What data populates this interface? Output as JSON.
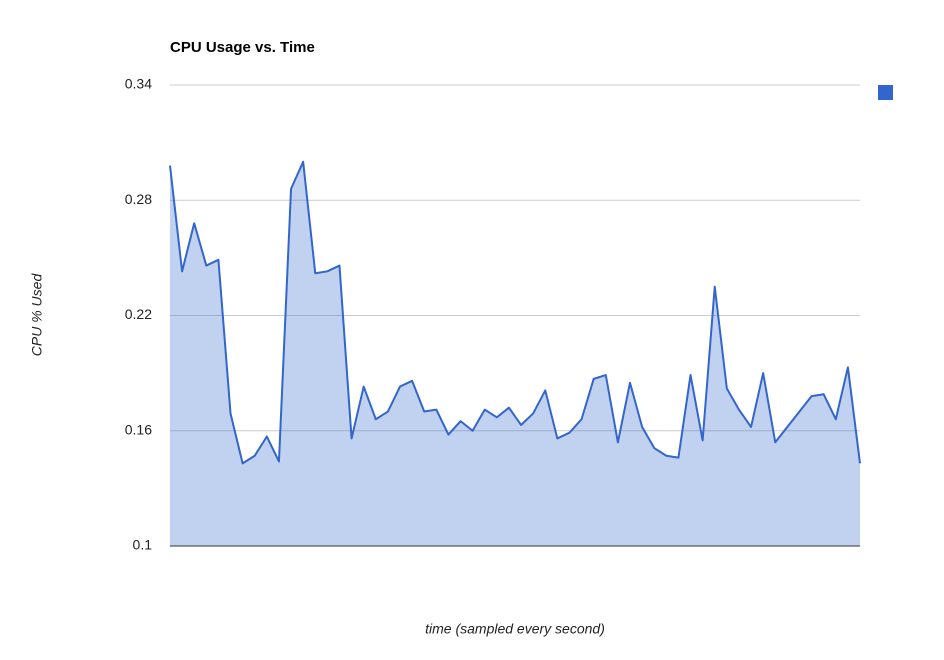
{
  "chart_data": {
    "type": "area",
    "title": "CPU Usage vs. Time",
    "x_label": "time (sampled every second)",
    "y_label": "CPU % Used",
    "ylim": [
      0.1,
      0.34
    ],
    "yticks": [
      0.1,
      0.16,
      0.22,
      0.28,
      0.34
    ],
    "grid": true,
    "legend": "right",
    "series": [
      {
        "color": "#3366cc",
        "values": [
          0.298,
          0.243,
          0.268,
          0.246,
          0.249,
          0.169,
          0.143,
          0.147,
          0.157,
          0.144,
          0.286,
          0.3,
          0.242,
          0.243,
          0.246,
          0.156,
          0.183,
          0.166,
          0.17,
          0.183,
          0.186,
          0.17,
          0.171,
          0.158,
          0.165,
          0.16,
          0.171,
          0.167,
          0.172,
          0.163,
          0.169,
          0.181,
          0.156,
          0.159,
          0.166,
          0.187,
          0.189,
          0.154,
          0.185,
          0.162,
          0.151,
          0.147,
          0.146,
          0.189,
          0.155,
          0.235,
          0.182,
          0.171,
          0.162,
          0.19,
          0.154,
          0.162,
          0.17,
          0.178,
          0.179,
          0.166,
          0.193,
          0.143
        ]
      }
    ]
  }
}
